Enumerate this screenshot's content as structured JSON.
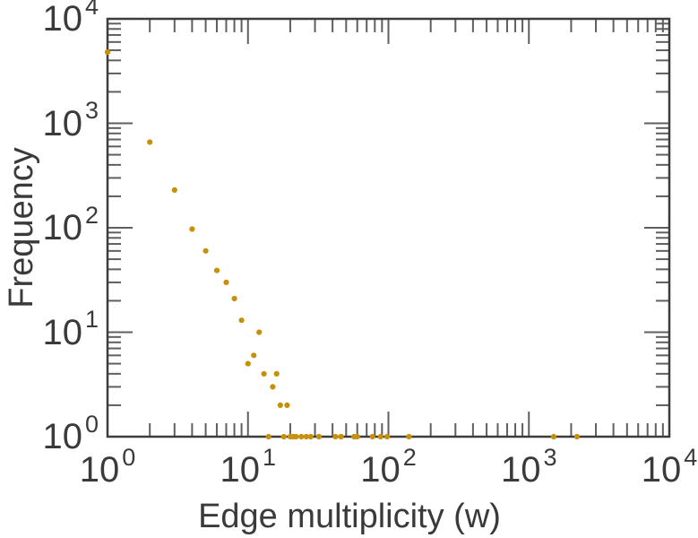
{
  "figure": {
    "background": "#ffffff",
    "frame_color": "#3c3c3c",
    "tick_color": "#5f5f5f",
    "text_color": "#3a3a3a"
  },
  "chart_data": {
    "type": "scatter",
    "title": "",
    "xlabel": "Edge multiplicity (w)",
    "ylabel": "Frequency",
    "x_scale": "log",
    "y_scale": "log",
    "xlim": [
      1,
      10000
    ],
    "ylim": [
      1,
      10000
    ],
    "grid": false,
    "legend": null,
    "tick_label_base": "10",
    "x_tick_exponents": [
      0,
      1,
      2,
      3,
      4
    ],
    "y_tick_exponents": [
      0,
      1,
      2,
      3,
      4
    ],
    "tick_style": "inward-mirrored-log-minors",
    "marker": {
      "shape": "circle",
      "color": "#c6900c",
      "radius_px": 3.1
    },
    "points": [
      [
        1,
        4800
      ],
      [
        2,
        660
      ],
      [
        3,
        230
      ],
      [
        4,
        97
      ],
      [
        5,
        60
      ],
      [
        6,
        39
      ],
      [
        7,
        30
      ],
      [
        8,
        21
      ],
      [
        9,
        13
      ],
      [
        10,
        5
      ],
      [
        11,
        6
      ],
      [
        12,
        10
      ],
      [
        13,
        4
      ],
      [
        14,
        1
      ],
      [
        15,
        3
      ],
      [
        16,
        4
      ],
      [
        17,
        2
      ],
      [
        18,
        1
      ],
      [
        19,
        2
      ],
      [
        20,
        1
      ],
      [
        21,
        1
      ],
      [
        22,
        1
      ],
      [
        24,
        1
      ],
      [
        26,
        1
      ],
      [
        28,
        1
      ],
      [
        32,
        1
      ],
      [
        42,
        1
      ],
      [
        46,
        1
      ],
      [
        57,
        1
      ],
      [
        60,
        1
      ],
      [
        77,
        1
      ],
      [
        88,
        1
      ],
      [
        98,
        1
      ],
      [
        140,
        1
      ],
      [
        1500,
        1
      ],
      [
        2200,
        1
      ]
    ]
  }
}
